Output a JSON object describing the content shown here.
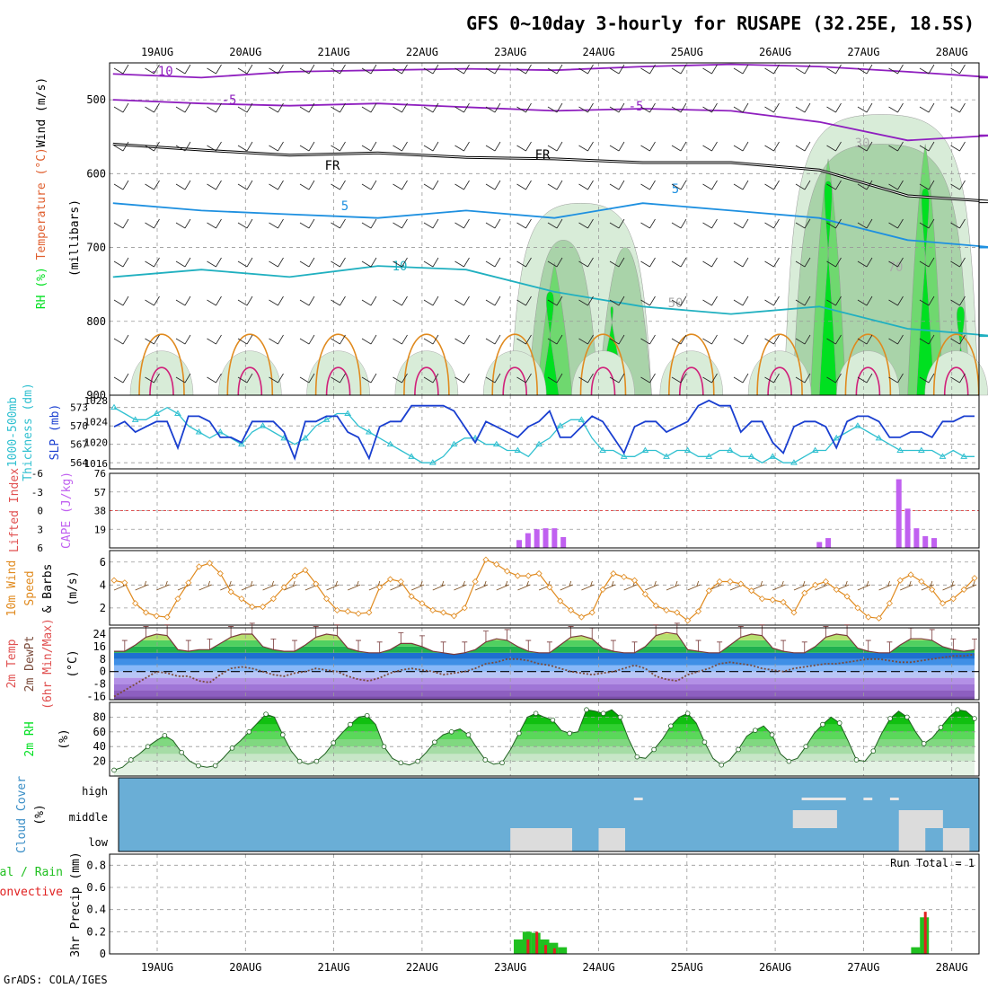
{
  "title": "GFS 0~10day 3-hourly for RUSAPE (32.25E, 18.5S)",
  "footer": "GrADS: COLA/IGES",
  "dates": [
    "19AUG",
    "20AUG",
    "21AUG",
    "22AUG",
    "23AUG",
    "24AUG",
    "25AUG",
    "26AUG",
    "27AUG",
    "28AUG"
  ],
  "colors": {
    "temp_purple": "#8f1fbf",
    "temp_blue": "#1e90e0",
    "temp_cyan": "#20b0c0",
    "temp_orange": "#e08a1e",
    "freeze": "#000000",
    "rh_green": "#00e020",
    "slp": "#1a3fd0",
    "thickness": "#30c0d0",
    "cape": "#c060f0",
    "wind10": "#e08a1e",
    "cloud_bg": "#6aaed6",
    "precip_total": "#20c020",
    "precip_conv": "#e02020"
  },
  "chart_data": [
    {
      "type": "heatmap",
      "panel": "upper-air",
      "ylabel": "(millibars)",
      "legend_words": [
        "RH (%)",
        "Temperature (°C)",
        "Wind (m/s)"
      ],
      "yticks": [
        500,
        600,
        700,
        800,
        900
      ],
      "ylim": [
        450,
        900
      ],
      "contour_labels": [
        "10",
        "5",
        "FR",
        "5",
        "10",
        "5",
        "-5",
        "30",
        "50",
        "70"
      ],
      "isotherms": [
        {
          "label": "-10",
          "level_mb": [
            465,
            470,
            462,
            460,
            458,
            460,
            455,
            452,
            455,
            462,
            470
          ]
        },
        {
          "label": "-5",
          "level_mb": [
            500,
            505,
            508,
            505,
            510,
            515,
            512,
            515,
            530,
            555,
            548
          ]
        },
        {
          "label": "FR",
          "level_mb": [
            560,
            568,
            575,
            572,
            578,
            580,
            585,
            585,
            595,
            630,
            638
          ]
        },
        {
          "label": "5",
          "level_mb": [
            640,
            650,
            655,
            660,
            650,
            660,
            640,
            650,
            660,
            690,
            700
          ]
        },
        {
          "label": "10",
          "level_mb": [
            740,
            730,
            740,
            725,
            730,
            760,
            780,
            790,
            780,
            810,
            820
          ]
        }
      ],
      "rh_wet_days": [
        "23AUG",
        "24AUG",
        "26AUG",
        "27AUG",
        "28AUG"
      ]
    },
    {
      "type": "line",
      "panel": "slp-thickness",
      "ylabel_left": "1000-500mb Thickness (dm)",
      "ylabel_right": "SLP (mb)",
      "left_ticks": [
        564,
        567,
        570,
        573
      ],
      "right_ticks": [
        1016,
        1020,
        1024,
        1028
      ],
      "series": [
        {
          "name": "SLP",
          "values": [
            1023,
            1024,
            1022,
            1023,
            1024,
            1024,
            1019,
            1025,
            1025,
            1024,
            1021,
            1021,
            1020,
            1024,
            1024,
            1024,
            1022,
            1017,
            1024,
            1024,
            1025,
            1025,
            1022,
            1021,
            1017,
            1023,
            1024,
            1024,
            1027,
            1027,
            1027,
            1027,
            1026,
            1023,
            1020,
            1024,
            1023,
            1022,
            1021,
            1023,
            1024,
            1026,
            1021,
            1021,
            1023,
            1025,
            1024,
            1021,
            1018,
            1023,
            1024,
            1024,
            1022,
            1023,
            1024,
            1027,
            1028,
            1027,
            1027,
            1022,
            1024,
            1024,
            1020,
            1018,
            1023,
            1024,
            1024,
            1023,
            1019,
            1024,
            1025,
            1025,
            1024,
            1021,
            1021,
            1022,
            1022,
            1021,
            1024,
            1024,
            1025,
            1025
          ]
        },
        {
          "name": "Thickness",
          "values": [
            573,
            572,
            571,
            571,
            572,
            573,
            572,
            570,
            569,
            568,
            569,
            568,
            567,
            569,
            570,
            569,
            568,
            567,
            568,
            570,
            571,
            572,
            572,
            570,
            569,
            568,
            567,
            566,
            565,
            564,
            564,
            565,
            567,
            568,
            568,
            567,
            567,
            566,
            566,
            565,
            567,
            568,
            570,
            571,
            571,
            568,
            566,
            566,
            565,
            565,
            566,
            566,
            565,
            566,
            566,
            565,
            565,
            566,
            566,
            565,
            565,
            564,
            565,
            564,
            564,
            565,
            566,
            566,
            568,
            569,
            570,
            569,
            568,
            567,
            566,
            566,
            566,
            566,
            565,
            566,
            565,
            565
          ]
        }
      ]
    },
    {
      "type": "bar",
      "panel": "cape-li",
      "ylabel_left": "Lifted Index",
      "ylabel_right": "CAPE (J/kg)",
      "left_ticks": [
        "-6",
        "-3",
        "0",
        "3",
        "6"
      ],
      "right_ticks": [
        "19",
        "38",
        "57",
        "76"
      ],
      "cape_bars": [
        {
          "date_offset": 4.1,
          "value": 8
        },
        {
          "date_offset": 4.2,
          "value": 15
        },
        {
          "date_offset": 4.3,
          "value": 19
        },
        {
          "date_offset": 4.4,
          "value": 20
        },
        {
          "date_offset": 4.5,
          "value": 20
        },
        {
          "date_offset": 4.6,
          "value": 11
        },
        {
          "date_offset": 7.5,
          "value": 6
        },
        {
          "date_offset": 7.6,
          "value": 10
        },
        {
          "date_offset": 8.4,
          "value": 70
        },
        {
          "date_offset": 8.5,
          "value": 40
        },
        {
          "date_offset": 8.6,
          "value": 20
        },
        {
          "date_offset": 8.7,
          "value": 12
        },
        {
          "date_offset": 8.8,
          "value": 10
        }
      ]
    },
    {
      "type": "line",
      "panel": "wind10",
      "ylabel": "10m Wind Speed & Barbs (m/s)",
      "yticks": [
        2,
        4,
        6
      ],
      "series": [
        {
          "name": "10m Wind Speed",
          "values": [
            4.4,
            4.2,
            2.4,
            1.6,
            1.3,
            1.2,
            2.8,
            4.2,
            5.6,
            5.9,
            5.0,
            3.4,
            2.8,
            2.1,
            2.1,
            2.8,
            3.8,
            4.8,
            5.3,
            4.1,
            2.8,
            1.8,
            1.7,
            1.5,
            1.6,
            3.8,
            4.5,
            4.3,
            3.0,
            2.4,
            1.8,
            1.6,
            1.3,
            2.0,
            4.3,
            6.2,
            5.8,
            5.2,
            4.8,
            4.8,
            5.0,
            3.8,
            2.6,
            1.8,
            1.2,
            1.6,
            3.6,
            5.0,
            4.7,
            4.4,
            3.2,
            2.2,
            1.8,
            1.6,
            0.9,
            1.7,
            3.5,
            4.3,
            4.3,
            4.1,
            3.5,
            2.8,
            2.7,
            2.5,
            1.6,
            3.3,
            4.0,
            4.3,
            3.6,
            3.0,
            2.0,
            1.2,
            1.1,
            2.4,
            4.4,
            4.9,
            4.3,
            3.6,
            2.4,
            2.8,
            3.6,
            4.6
          ]
        }
      ]
    },
    {
      "type": "area",
      "panel": "temp2m",
      "ylabel": "2m Temp 2m DewPt (6hr Min/Max) (°C)",
      "yticks": [
        -16,
        -8,
        0,
        8,
        16,
        24
      ],
      "series": [
        {
          "name": "2m Temp",
          "values": [
            13,
            13,
            17,
            22,
            24,
            23,
            14,
            13,
            14,
            14,
            18,
            22,
            24,
            24,
            16,
            14,
            13,
            13,
            17,
            22,
            24,
            23,
            15,
            13,
            12,
            12,
            14,
            18,
            18,
            16,
            13,
            12,
            11,
            12,
            14,
            19,
            21,
            20,
            16,
            13,
            12,
            12,
            17,
            22,
            23,
            21,
            15,
            13,
            12,
            12,
            16,
            23,
            25,
            24,
            14,
            13,
            12,
            12,
            17,
            22,
            24,
            23,
            15,
            13,
            12,
            12,
            16,
            22,
            24,
            23,
            15,
            13,
            12,
            12,
            17,
            21,
            21,
            20,
            16,
            14,
            13,
            14
          ]
        },
        {
          "name": "2m DewPt",
          "values": [
            -16,
            -12,
            -8,
            -4,
            0,
            -1,
            -3,
            -3,
            -6,
            -7,
            -2,
            2,
            3,
            2,
            0,
            -2,
            -3,
            -1,
            0,
            2,
            1,
            0,
            -3,
            -5,
            -6,
            -4,
            -1,
            1,
            2,
            1,
            0,
            -2,
            -1,
            0,
            2,
            5,
            6,
            8,
            8,
            7,
            5,
            4,
            2,
            0,
            -1,
            -2,
            -1,
            0,
            2,
            4,
            2,
            -3,
            -5,
            -6,
            -2,
            0,
            2,
            5,
            6,
            5,
            4,
            2,
            1,
            0,
            2,
            3,
            4,
            5,
            5,
            6,
            7,
            8,
            8,
            7,
            6,
            6,
            7,
            8,
            9,
            10,
            10,
            11
          ]
        }
      ]
    },
    {
      "type": "area",
      "panel": "rh2m",
      "ylabel": "2m RH (%)",
      "yticks": [
        20,
        40,
        60,
        80
      ],
      "series": [
        {
          "name": "2m RH",
          "values": [
            8,
            12,
            22,
            30,
            40,
            48,
            55,
            48,
            32,
            20,
            14,
            12,
            14,
            25,
            38,
            48,
            60,
            72,
            84,
            80,
            56,
            34,
            20,
            16,
            20,
            30,
            45,
            58,
            70,
            80,
            82,
            70,
            40,
            24,
            18,
            15,
            20,
            32,
            46,
            56,
            60,
            64,
            56,
            38,
            22,
            16,
            18,
            36,
            58,
            80,
            85,
            80,
            76,
            62,
            58,
            60,
            90,
            88,
            85,
            90,
            80,
            50,
            26,
            24,
            36,
            50,
            68,
            80,
            85,
            72,
            46,
            24,
            15,
            22,
            36,
            54,
            62,
            68,
            56,
            30,
            20,
            24,
            40,
            58,
            70,
            80,
            72,
            48,
            22,
            20,
            34,
            58,
            78,
            88,
            80,
            60,
            44,
            52,
            66,
            80,
            90,
            88,
            78
          ]
        }
      ]
    },
    {
      "type": "heatmap",
      "panel": "cloud",
      "ylabel": "Cloud Cover (%)",
      "yticks": [
        "high",
        "middle",
        "low"
      ],
      "low_blocks": [
        [
          4.0,
          4.7
        ],
        [
          5.0,
          5.3
        ],
        [
          8.4,
          8.7
        ],
        [
          8.9,
          9.2
        ]
      ],
      "middle_blocks": [
        [
          7.2,
          7.7
        ],
        [
          8.4,
          8.9
        ]
      ],
      "high_blocks": [
        [
          5.4,
          5.5
        ],
        [
          7.3,
          7.8
        ],
        [
          8.0,
          8.1
        ],
        [
          8.3,
          8.4
        ]
      ]
    },
    {
      "type": "bar",
      "panel": "precip",
      "ylabel_left": "Total / Rain Convective",
      "ylabel_right": "3hr Precip (mm)",
      "annotation": "Run Total = 1",
      "yticks": [
        "0",
        "0.2",
        "0.4",
        "0.6",
        "0.8"
      ],
      "ylim": [
        0,
        0.9
      ],
      "series": [
        {
          "name": "Total",
          "bars": [
            [
              4.1,
              0.13
            ],
            [
              4.2,
              0.2
            ],
            [
              4.3,
              0.19
            ],
            [
              4.4,
              0.13
            ],
            [
              4.5,
              0.1
            ],
            [
              4.6,
              0.06
            ],
            [
              8.6,
              0.06
            ],
            [
              8.7,
              0.33
            ]
          ]
        },
        {
          "name": "Convective",
          "bars": [
            [
              4.2,
              0.13
            ],
            [
              4.3,
              0.2
            ],
            [
              4.4,
              0.08
            ],
            [
              4.5,
              0.05
            ],
            [
              8.7,
              0.38
            ]
          ]
        }
      ]
    }
  ]
}
